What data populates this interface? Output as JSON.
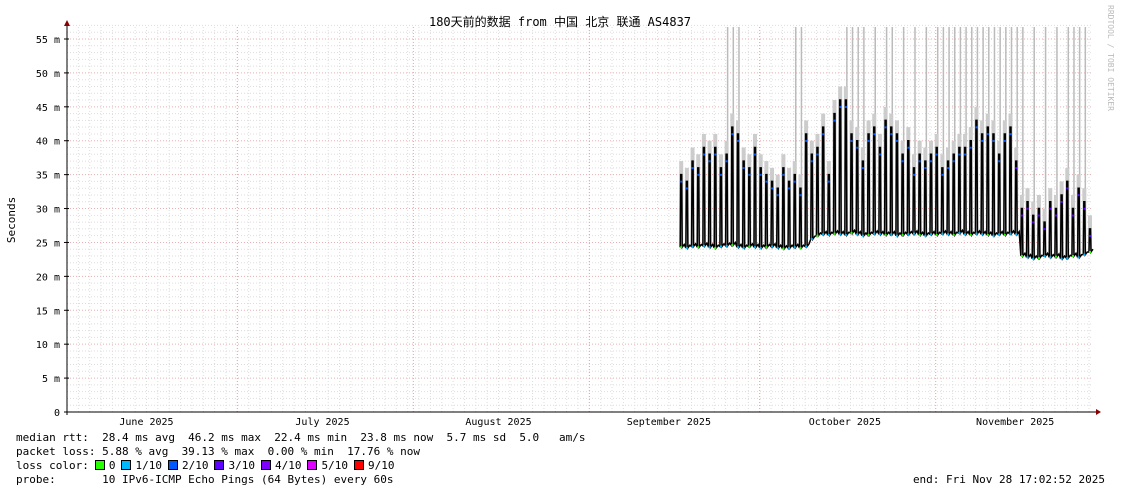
{
  "chart_data": {
    "type": "line",
    "title": "180天前的数据 from 中国 北京 联通 AS4837",
    "ylabel": "Seconds",
    "watermark": "RRDTOOL / TOBI OETIKER",
    "ylim": [
      0,
      57
    ],
    "yticks": [
      {
        "v": 0,
        "label": "0"
      },
      {
        "v": 5,
        "label": "5 m"
      },
      {
        "v": 10,
        "label": "10 m"
      },
      {
        "v": 15,
        "label": "15 m"
      },
      {
        "v": 20,
        "label": "20 m"
      },
      {
        "v": 25,
        "label": "25 m"
      },
      {
        "v": 30,
        "label": "30 m"
      },
      {
        "v": 35,
        "label": "35 m"
      },
      {
        "v": 40,
        "label": "40 m"
      },
      {
        "v": 45,
        "label": "45 m"
      },
      {
        "v": 50,
        "label": "50 m"
      },
      {
        "v": 55,
        "label": "55 m"
      }
    ],
    "xlim": [
      "2025-06-01",
      "2025-11-28"
    ],
    "xticks": [
      {
        "date": "2025-06-15",
        "label": "June 2025"
      },
      {
        "date": "2025-07-16",
        "label": "July 2025"
      },
      {
        "date": "2025-08-16",
        "label": "August 2025"
      },
      {
        "date": "2025-09-15",
        "label": "September 2025"
      },
      {
        "date": "2025-10-16",
        "label": "October 2025"
      },
      {
        "date": "2025-11-15",
        "label": "November 2025"
      }
    ],
    "month_lines": [
      "2025-07-01",
      "2025-08-01",
      "2025-09-01",
      "2025-10-01",
      "2025-11-01"
    ],
    "grid": true,
    "series_start": "2025-09-17",
    "daily_peak_ms": [
      35,
      34,
      37,
      36,
      39,
      38,
      39,
      36,
      38,
      42,
      41,
      37,
      36,
      39,
      36,
      35,
      34,
      33,
      36,
      34,
      35,
      33,
      41,
      38,
      39,
      42,
      35,
      44,
      46,
      46,
      41,
      40,
      37,
      41,
      42,
      39,
      43,
      42,
      41,
      38,
      40,
      36,
      38,
      37,
      38,
      39,
      36,
      37,
      38,
      39,
      39,
      40,
      43,
      41,
      42,
      41,
      38,
      41,
      42,
      37,
      30,
      31,
      29,
      30,
      28,
      31,
      30,
      32,
      34,
      30,
      33,
      31,
      27
    ],
    "daily_base_ms": [
      24.3,
      24.2,
      24.4,
      24.3,
      24.5,
      24.3,
      24.2,
      24.4,
      24.5,
      24.6,
      24.3,
      24.2,
      24.4,
      24.3,
      24.2,
      24.3,
      24.4,
      24.2,
      24.1,
      24.2,
      24.3,
      24.2,
      24.4,
      25.5,
      26,
      26.2,
      26.1,
      26.3,
      26.2,
      26.1,
      26.4,
      26.2,
      26,
      26.1,
      26.3,
      26.2,
      26.1,
      26.2,
      26,
      26.1,
      26.2,
      26.3,
      26.1,
      26,
      26.2,
      26.1,
      26.3,
      26.2,
      26.1,
      26.4,
      26.2,
      26.1,
      26.3,
      26.2,
      26.1,
      26,
      26.2,
      26.1,
      26.3,
      26.2,
      23,
      22.8,
      22.6,
      22.7,
      23,
      22.8,
      22.9,
      22.6,
      22.7,
      23,
      22.8,
      23.2,
      23.6
    ],
    "outlier_dates": [
      "2025-09-25",
      "2025-09-26",
      "2025-09-27",
      "2025-10-07",
      "2025-10-08",
      "2025-10-16",
      "2025-10-17",
      "2025-10-18",
      "2025-10-19",
      "2025-10-21",
      "2025-10-23",
      "2025-10-24",
      "2025-10-26",
      "2025-10-28",
      "2025-10-30",
      "2025-11-01",
      "2025-11-02",
      "2025-11-03",
      "2025-11-04",
      "2025-11-05",
      "2025-11-06",
      "2025-11-07",
      "2025-11-08",
      "2025-11-09",
      "2025-11-10",
      "2025-11-11",
      "2025-11-12",
      "2025-11-13",
      "2025-11-14",
      "2025-11-15",
      "2025-11-16",
      "2025-11-18",
      "2025-11-20",
      "2025-11-22",
      "2025-11-24",
      "2025-11-25",
      "2025-11-26",
      "2025-11-27"
    ],
    "line_color": "#000000"
  },
  "legend": {
    "median_rtt": "median rtt:  28.4 ms avg  46.2 ms max  22.4 ms min  23.8 ms now  5.7 ms sd  5.0   am/s",
    "packet_loss": "packet loss: 5.88 % avg  39.13 % max  0.00 % min  17.76 % now",
    "loss_color_label": "loss color:",
    "loss_colors": [
      {
        "label": "0",
        "color": "#26ff00"
      },
      {
        "label": "1/10",
        "color": "#00b8ff"
      },
      {
        "label": "2/10",
        "color": "#0059ff"
      },
      {
        "label": "3/10",
        "color": "#5e00ff"
      },
      {
        "label": "4/10",
        "color": "#7e00ff"
      },
      {
        "label": "5/10",
        "color": "#dd00ff"
      },
      {
        "label": "9/10",
        "color": "#ff0000"
      }
    ],
    "probe": "probe:       10 IPv6-ICMP Echo Pings (64 Bytes) every 60s",
    "end": "end: Fri Nov 28 17:02:52 2025"
  }
}
